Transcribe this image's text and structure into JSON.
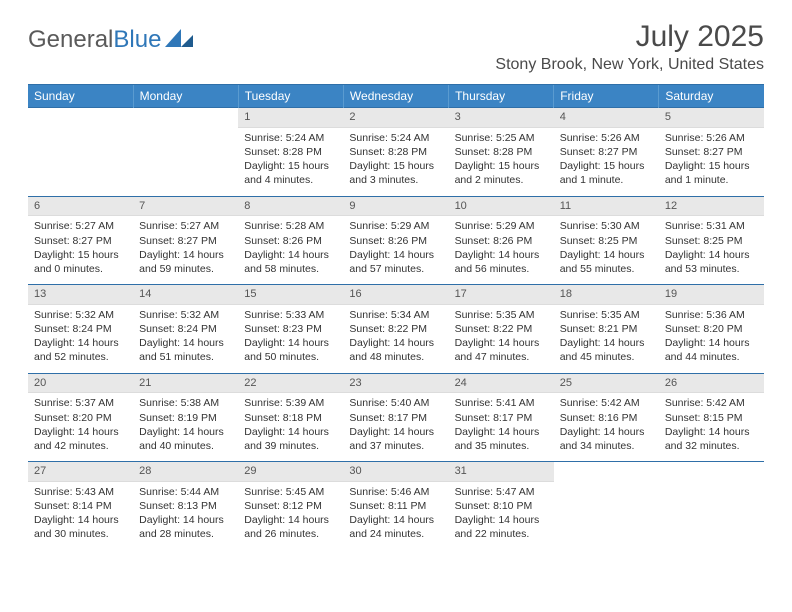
{
  "logo": {
    "text_left": "General",
    "text_right": "Blue"
  },
  "month_title": "July 2025",
  "location": "Stony Brook, New York, United States",
  "colors": {
    "header_bg": "#3b84c4",
    "header_text": "#ffffff",
    "daynum_bg": "#e8e8e8",
    "row_border": "#2f6fa8",
    "logo_blue": "#2f77b8",
    "body_text": "#333333"
  },
  "day_headers": [
    "Sunday",
    "Monday",
    "Tuesday",
    "Wednesday",
    "Thursday",
    "Friday",
    "Saturday"
  ],
  "weeks": [
    [
      {
        "empty": true
      },
      {
        "empty": true
      },
      {
        "num": "1",
        "sunrise": "Sunrise: 5:24 AM",
        "sunset": "Sunset: 8:28 PM",
        "daylight": "Daylight: 15 hours and 4 minutes."
      },
      {
        "num": "2",
        "sunrise": "Sunrise: 5:24 AM",
        "sunset": "Sunset: 8:28 PM",
        "daylight": "Daylight: 15 hours and 3 minutes."
      },
      {
        "num": "3",
        "sunrise": "Sunrise: 5:25 AM",
        "sunset": "Sunset: 8:28 PM",
        "daylight": "Daylight: 15 hours and 2 minutes."
      },
      {
        "num": "4",
        "sunrise": "Sunrise: 5:26 AM",
        "sunset": "Sunset: 8:27 PM",
        "daylight": "Daylight: 15 hours and 1 minute."
      },
      {
        "num": "5",
        "sunrise": "Sunrise: 5:26 AM",
        "sunset": "Sunset: 8:27 PM",
        "daylight": "Daylight: 15 hours and 1 minute."
      }
    ],
    [
      {
        "num": "6",
        "sunrise": "Sunrise: 5:27 AM",
        "sunset": "Sunset: 8:27 PM",
        "daylight": "Daylight: 15 hours and 0 minutes."
      },
      {
        "num": "7",
        "sunrise": "Sunrise: 5:27 AM",
        "sunset": "Sunset: 8:27 PM",
        "daylight": "Daylight: 14 hours and 59 minutes."
      },
      {
        "num": "8",
        "sunrise": "Sunrise: 5:28 AM",
        "sunset": "Sunset: 8:26 PM",
        "daylight": "Daylight: 14 hours and 58 minutes."
      },
      {
        "num": "9",
        "sunrise": "Sunrise: 5:29 AM",
        "sunset": "Sunset: 8:26 PM",
        "daylight": "Daylight: 14 hours and 57 minutes."
      },
      {
        "num": "10",
        "sunrise": "Sunrise: 5:29 AM",
        "sunset": "Sunset: 8:26 PM",
        "daylight": "Daylight: 14 hours and 56 minutes."
      },
      {
        "num": "11",
        "sunrise": "Sunrise: 5:30 AM",
        "sunset": "Sunset: 8:25 PM",
        "daylight": "Daylight: 14 hours and 55 minutes."
      },
      {
        "num": "12",
        "sunrise": "Sunrise: 5:31 AM",
        "sunset": "Sunset: 8:25 PM",
        "daylight": "Daylight: 14 hours and 53 minutes."
      }
    ],
    [
      {
        "num": "13",
        "sunrise": "Sunrise: 5:32 AM",
        "sunset": "Sunset: 8:24 PM",
        "daylight": "Daylight: 14 hours and 52 minutes."
      },
      {
        "num": "14",
        "sunrise": "Sunrise: 5:32 AM",
        "sunset": "Sunset: 8:24 PM",
        "daylight": "Daylight: 14 hours and 51 minutes."
      },
      {
        "num": "15",
        "sunrise": "Sunrise: 5:33 AM",
        "sunset": "Sunset: 8:23 PM",
        "daylight": "Daylight: 14 hours and 50 minutes."
      },
      {
        "num": "16",
        "sunrise": "Sunrise: 5:34 AM",
        "sunset": "Sunset: 8:22 PM",
        "daylight": "Daylight: 14 hours and 48 minutes."
      },
      {
        "num": "17",
        "sunrise": "Sunrise: 5:35 AM",
        "sunset": "Sunset: 8:22 PM",
        "daylight": "Daylight: 14 hours and 47 minutes."
      },
      {
        "num": "18",
        "sunrise": "Sunrise: 5:35 AM",
        "sunset": "Sunset: 8:21 PM",
        "daylight": "Daylight: 14 hours and 45 minutes."
      },
      {
        "num": "19",
        "sunrise": "Sunrise: 5:36 AM",
        "sunset": "Sunset: 8:20 PM",
        "daylight": "Daylight: 14 hours and 44 minutes."
      }
    ],
    [
      {
        "num": "20",
        "sunrise": "Sunrise: 5:37 AM",
        "sunset": "Sunset: 8:20 PM",
        "daylight": "Daylight: 14 hours and 42 minutes."
      },
      {
        "num": "21",
        "sunrise": "Sunrise: 5:38 AM",
        "sunset": "Sunset: 8:19 PM",
        "daylight": "Daylight: 14 hours and 40 minutes."
      },
      {
        "num": "22",
        "sunrise": "Sunrise: 5:39 AM",
        "sunset": "Sunset: 8:18 PM",
        "daylight": "Daylight: 14 hours and 39 minutes."
      },
      {
        "num": "23",
        "sunrise": "Sunrise: 5:40 AM",
        "sunset": "Sunset: 8:17 PM",
        "daylight": "Daylight: 14 hours and 37 minutes."
      },
      {
        "num": "24",
        "sunrise": "Sunrise: 5:41 AM",
        "sunset": "Sunset: 8:17 PM",
        "daylight": "Daylight: 14 hours and 35 minutes."
      },
      {
        "num": "25",
        "sunrise": "Sunrise: 5:42 AM",
        "sunset": "Sunset: 8:16 PM",
        "daylight": "Daylight: 14 hours and 34 minutes."
      },
      {
        "num": "26",
        "sunrise": "Sunrise: 5:42 AM",
        "sunset": "Sunset: 8:15 PM",
        "daylight": "Daylight: 14 hours and 32 minutes."
      }
    ],
    [
      {
        "num": "27",
        "sunrise": "Sunrise: 5:43 AM",
        "sunset": "Sunset: 8:14 PM",
        "daylight": "Daylight: 14 hours and 30 minutes."
      },
      {
        "num": "28",
        "sunrise": "Sunrise: 5:44 AM",
        "sunset": "Sunset: 8:13 PM",
        "daylight": "Daylight: 14 hours and 28 minutes."
      },
      {
        "num": "29",
        "sunrise": "Sunrise: 5:45 AM",
        "sunset": "Sunset: 8:12 PM",
        "daylight": "Daylight: 14 hours and 26 minutes."
      },
      {
        "num": "30",
        "sunrise": "Sunrise: 5:46 AM",
        "sunset": "Sunset: 8:11 PM",
        "daylight": "Daylight: 14 hours and 24 minutes."
      },
      {
        "num": "31",
        "sunrise": "Sunrise: 5:47 AM",
        "sunset": "Sunset: 8:10 PM",
        "daylight": "Daylight: 14 hours and 22 minutes."
      },
      {
        "empty": true
      },
      {
        "empty": true
      }
    ]
  ]
}
